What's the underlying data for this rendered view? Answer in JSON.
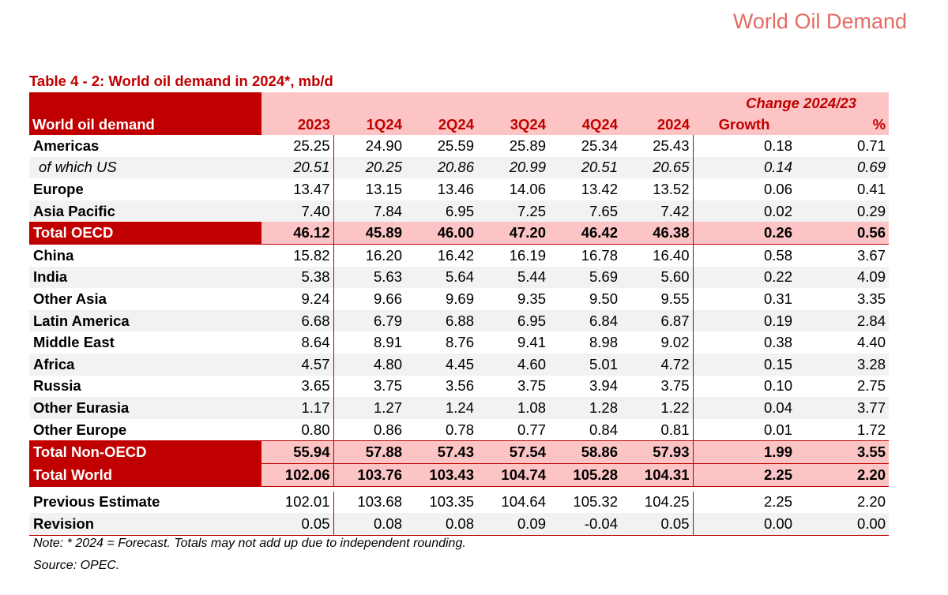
{
  "page_header": "World Oil Demand",
  "table_title": "Table 4 - 2: World oil demand in 2024*, mb/d",
  "header": {
    "change_label": "Change 2024/23",
    "row_label": "World oil demand",
    "columns": [
      "2023",
      "1Q24",
      "2Q24",
      "3Q24",
      "4Q24",
      "2024",
      "Growth",
      "%"
    ]
  },
  "oecd_rows": [
    {
      "label": "Americas",
      "values": [
        "25.25",
        "24.90",
        "25.59",
        "25.89",
        "25.34",
        "25.43",
        "0.18",
        "0.71"
      ]
    },
    {
      "label": "of which US",
      "values": [
        "20.51",
        "20.25",
        "20.86",
        "20.99",
        "20.51",
        "20.65",
        "0.14",
        "0.69"
      ]
    },
    {
      "label": "Europe",
      "values": [
        "13.47",
        "13.15",
        "13.46",
        "14.06",
        "13.42",
        "13.52",
        "0.06",
        "0.41"
      ]
    },
    {
      "label": "Asia Pacific",
      "values": [
        "7.40",
        "7.84",
        "6.95",
        "7.25",
        "7.65",
        "7.42",
        "0.02",
        "0.29"
      ]
    }
  ],
  "total_oecd": {
    "label": "Total OECD",
    "values": [
      "46.12",
      "45.89",
      "46.00",
      "47.20",
      "46.42",
      "46.38",
      "0.26",
      "0.56"
    ]
  },
  "non_oecd_rows": [
    {
      "label": "China",
      "values": [
        "15.82",
        "16.20",
        "16.42",
        "16.19",
        "16.78",
        "16.40",
        "0.58",
        "3.67"
      ]
    },
    {
      "label": "India",
      "values": [
        "5.38",
        "5.63",
        "5.64",
        "5.44",
        "5.69",
        "5.60",
        "0.22",
        "4.09"
      ]
    },
    {
      "label": "Other Asia",
      "values": [
        "9.24",
        "9.66",
        "9.69",
        "9.35",
        "9.50",
        "9.55",
        "0.31",
        "3.35"
      ]
    },
    {
      "label": "Latin America",
      "values": [
        "6.68",
        "6.79",
        "6.88",
        "6.95",
        "6.84",
        "6.87",
        "0.19",
        "2.84"
      ]
    },
    {
      "label": "Middle East",
      "values": [
        "8.64",
        "8.91",
        "8.76",
        "9.41",
        "8.98",
        "9.02",
        "0.38",
        "4.40"
      ]
    },
    {
      "label": "Africa",
      "values": [
        "4.57",
        "4.80",
        "4.45",
        "4.60",
        "5.01",
        "4.72",
        "0.15",
        "3.28"
      ]
    },
    {
      "label": "Russia",
      "values": [
        "3.65",
        "3.75",
        "3.56",
        "3.75",
        "3.94",
        "3.75",
        "0.10",
        "2.75"
      ]
    },
    {
      "label": "Other Eurasia",
      "values": [
        "1.17",
        "1.27",
        "1.24",
        "1.08",
        "1.28",
        "1.22",
        "0.04",
        "3.77"
      ]
    },
    {
      "label": "Other Europe",
      "values": [
        "0.80",
        "0.86",
        "0.78",
        "0.77",
        "0.84",
        "0.81",
        "0.01",
        "1.72"
      ]
    }
  ],
  "total_non_oecd": {
    "label": "Total Non-OECD",
    "values": [
      "55.94",
      "57.88",
      "57.43",
      "57.54",
      "58.86",
      "57.93",
      "1.99",
      "3.55"
    ]
  },
  "total_world": {
    "label": "Total World",
    "values": [
      "102.06",
      "103.76",
      "103.43",
      "104.74",
      "105.28",
      "104.31",
      "2.25",
      "2.20"
    ]
  },
  "previous_estimate": {
    "label": "Previous Estimate",
    "values": [
      "102.01",
      "103.68",
      "103.35",
      "104.64",
      "105.32",
      "104.25",
      "2.25",
      "2.20"
    ]
  },
  "revision": {
    "label": "Revision",
    "values": [
      "0.05",
      "0.08",
      "0.08",
      "0.09",
      "-0.04",
      "0.05",
      "0.00",
      "0.00"
    ]
  },
  "note": "Note: * 2024 = Forecast. Totals may not add up due to independent rounding.",
  "source": "Source: OPEC.",
  "colors": {
    "accent": "#c00000",
    "header_fill": "#fcc4c4",
    "stripe": "#f2f2f2",
    "page_header": "#e36c64"
  }
}
